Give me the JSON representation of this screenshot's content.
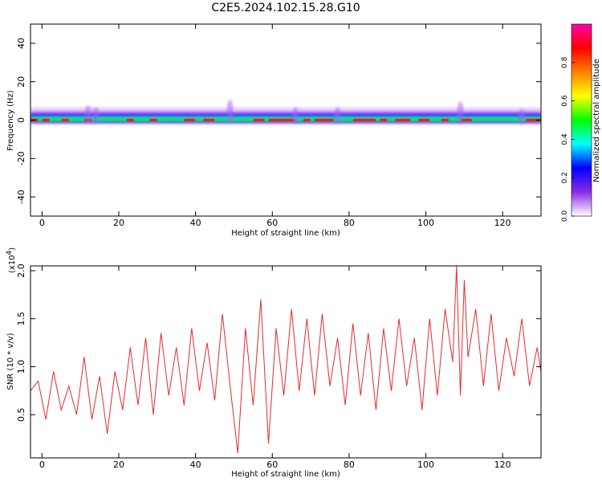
{
  "chart_data": [
    {
      "type": "heatmap",
      "title": "C2E5.2024.102.15.28.G10",
      "xlabel": "Height of straight line (km)",
      "ylabel": "Frequency (Hz)",
      "xlim": [
        -3,
        130
      ],
      "ylim": [
        -50,
        50
      ],
      "x_ticks": [
        0,
        20,
        40,
        60,
        80,
        100,
        120
      ],
      "y_ticks": [
        -40,
        -20,
        0,
        20,
        40
      ],
      "colorbar": {
        "label": "Normalized spectral amplitude",
        "range": [
          0,
          1
        ],
        "ticks": [
          "0.0",
          "0.2",
          "0.4",
          "0.6",
          "0.8"
        ],
        "colors": [
          "#ffffff",
          "#8a2be2",
          "#0000ff",
          "#00ffff",
          "#00ff00",
          "#ffff00",
          "#ff8000",
          "#ff0000",
          "#ff00aa"
        ]
      },
      "ridge_center_hz": 0,
      "ridge_half_width_hz": 4,
      "bursts": [
        {
          "x": 12,
          "freq_hz": 6
        },
        {
          "x": 14,
          "freq_hz": 5
        },
        {
          "x": 49,
          "freq_hz": 9
        },
        {
          "x": 66,
          "freq_hz": 5
        },
        {
          "x": 77,
          "freq_hz": 5
        },
        {
          "x": 109,
          "freq_hz": 8
        },
        {
          "x": 125,
          "freq_hz": 4
        }
      ]
    },
    {
      "type": "line",
      "xlabel": "Height of straight line (km)",
      "ylabel": "SNR (10 * v/v)",
      "y_multiplier": "(x10",
      "y_multiplier_exp": "4",
      "y_multiplier_close": ")",
      "xlim": [
        -3,
        130
      ],
      "ylim": [
        0.05,
        2.05
      ],
      "x_ticks": [
        0,
        20,
        40,
        60,
        80,
        100,
        120
      ],
      "y_ticks": [
        0.5,
        1.0,
        1.5,
        2.0
      ],
      "y_tick_labels": [
        "0.5",
        "1.0",
        "1.5",
        "2.0"
      ],
      "color": "#e8292a",
      "series": [
        {
          "x": [
            -3,
            -1,
            1,
            3,
            5,
            7,
            9,
            11,
            13,
            15,
            17,
            19,
            21,
            23,
            25,
            27,
            29,
            31,
            33,
            35,
            37,
            39,
            41,
            43,
            45,
            47,
            49,
            51,
            53,
            55,
            57,
            59,
            61,
            63,
            65,
            67,
            69,
            71,
            73,
            75,
            77,
            79,
            81,
            83,
            85,
            87,
            89,
            91,
            93,
            95,
            97,
            99,
            101,
            103,
            105,
            107,
            108,
            109,
            110,
            111,
            113,
            115,
            117,
            119,
            121,
            123,
            125,
            127,
            129,
            130
          ],
          "y": [
            0.75,
            0.85,
            0.45,
            0.95,
            0.55,
            0.8,
            0.5,
            1.1,
            0.45,
            0.9,
            0.3,
            0.95,
            0.55,
            1.2,
            0.6,
            1.3,
            0.5,
            1.35,
            0.7,
            1.2,
            0.6,
            1.4,
            0.75,
            1.25,
            0.65,
            1.55,
            0.8,
            0.1,
            1.4,
            0.6,
            1.7,
            0.2,
            1.4,
            0.7,
            1.6,
            0.75,
            1.5,
            0.7,
            1.55,
            0.8,
            1.3,
            0.6,
            1.45,
            0.7,
            1.35,
            0.55,
            1.4,
            0.75,
            1.5,
            0.8,
            1.3,
            0.55,
            1.5,
            0.7,
            1.6,
            1.05,
            2.05,
            0.7,
            1.9,
            1.1,
            1.6,
            0.8,
            1.55,
            0.75,
            1.3,
            0.9,
            1.5,
            0.8,
            1.2,
            0.95
          ]
        }
      ]
    }
  ]
}
